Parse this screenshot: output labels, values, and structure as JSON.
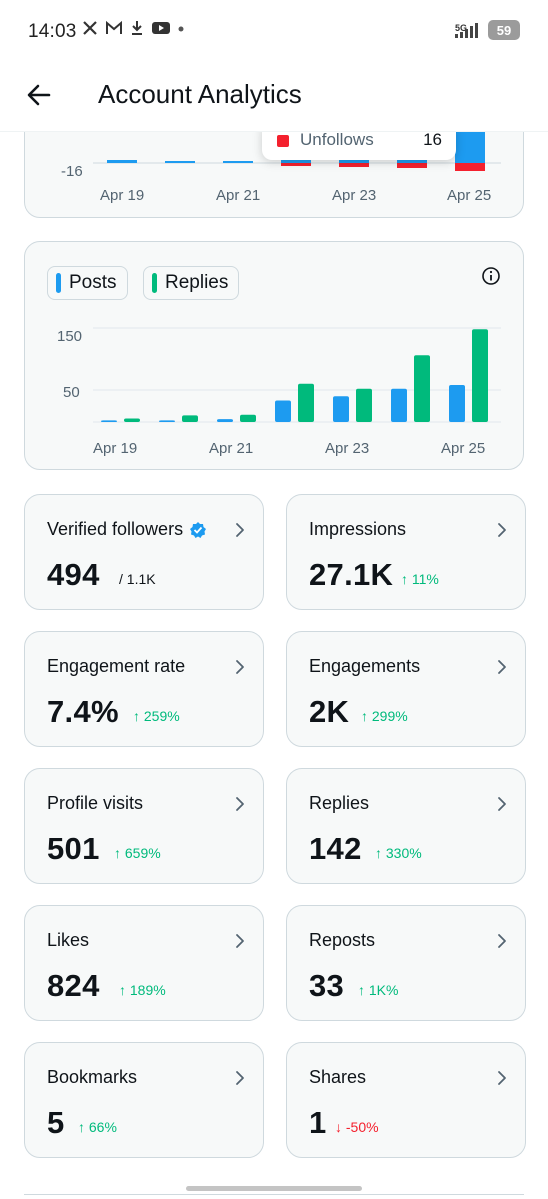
{
  "status_bar": {
    "time": "14:03",
    "network": "5G",
    "battery": "59",
    "icons": [
      "x-logo-icon",
      "gmail-icon",
      "download-icon",
      "youtube-icon",
      "dot-icon",
      "signal-icon",
      "battery-icon"
    ]
  },
  "header": {
    "title": "Account Analytics",
    "back_icon": "arrow-left-icon"
  },
  "follows_chart": {
    "y_tick": "-16",
    "x_ticks": [
      "Apr 19",
      "Apr 21",
      "Apr 23",
      "Apr 25"
    ],
    "tooltip": {
      "label": "Unfollows",
      "value": "16",
      "color": "#f4212e"
    }
  },
  "posts_chart": {
    "legend": [
      {
        "label": "Posts",
        "color": "#1d9bf0"
      },
      {
        "label": "Replies",
        "color": "#00ba7c"
      }
    ],
    "y_ticks": [
      "150",
      "50"
    ],
    "x_ticks": [
      "Apr 19",
      "Apr 21",
      "Apr 23",
      "Apr 25"
    ]
  },
  "chart_data": [
    {
      "type": "bar",
      "categories": [
        "Apr 19",
        "Apr 20",
        "Apr 21",
        "Apr 22",
        "Apr 23",
        "Apr 24",
        "Apr 25"
      ],
      "series": [
        {
          "name": "Posts",
          "values": [
            1,
            1,
            3,
            33,
            40,
            52,
            58
          ]
        },
        {
          "name": "Replies",
          "values": [
            4,
            9,
            10,
            60,
            52,
            106,
            148
          ]
        }
      ],
      "ylim": [
        0,
        165
      ],
      "y_ticks": [
        50,
        150
      ],
      "x_tick_labels": [
        "Apr 19",
        "Apr 21",
        "Apr 23",
        "Apr 25"
      ],
      "grid": true
    }
  ],
  "metrics": [
    {
      "label": "Verified followers",
      "value": "494",
      "sub": "/ 1.1K",
      "trend": "none",
      "verified_badge": true
    },
    {
      "label": "Impressions",
      "value": "27.1K",
      "sub": "↑ 11%",
      "trend": "up"
    },
    {
      "label": "Engagement rate",
      "value": "7.4%",
      "sub": "↑ 259%",
      "trend": "up"
    },
    {
      "label": "Engagements",
      "value": "2K",
      "sub": "↑ 299%",
      "trend": "up"
    },
    {
      "label": "Profile visits",
      "value": "501",
      "sub": "↑ 659%",
      "trend": "up"
    },
    {
      "label": "Replies",
      "value": "142",
      "sub": "↑ 330%",
      "trend": "up"
    },
    {
      "label": "Likes",
      "value": "824",
      "sub": "↑ 189%",
      "trend": "up"
    },
    {
      "label": "Reposts",
      "value": "33",
      "sub": "↑ 1K%",
      "trend": "up"
    },
    {
      "label": "Bookmarks",
      "value": "5",
      "sub": "↑ 66%",
      "trend": "up"
    },
    {
      "label": "Shares",
      "value": "1",
      "sub": "↓ -50%",
      "trend": "down"
    }
  ]
}
